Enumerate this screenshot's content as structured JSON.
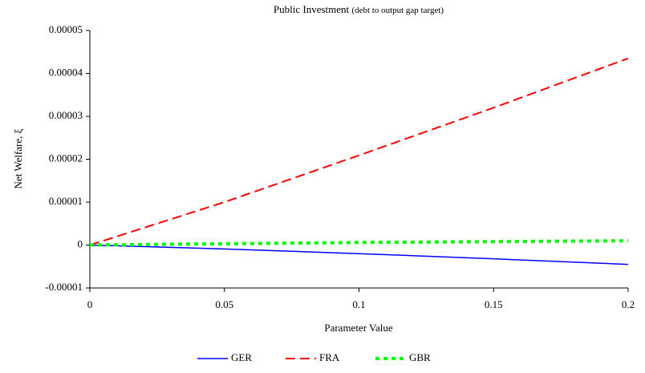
{
  "chart_data": {
    "type": "line",
    "title": "Public Investment",
    "subtitle": "(debt to output gap target)",
    "x_label": "Parameter Value",
    "y_label": "Net Welfare, ξ",
    "x": [
      0,
      0.05,
      0.1,
      0.15,
      0.2
    ],
    "series": [
      {
        "name": "GER",
        "color": "#0000ff",
        "dash": "solid",
        "values": [
          0,
          -9e-07,
          -2e-06,
          -3.2e-06,
          -4.5e-06
        ]
      },
      {
        "name": "FRA",
        "color": "#ff0000",
        "dash": "dashed",
        "values": [
          0,
          1e-05,
          2.09e-05,
          3.2e-05,
          4.35e-05
        ]
      },
      {
        "name": "GBR",
        "color": "#00ff00",
        "dash": "dotted",
        "values": [
          0,
          3e-07,
          6e-07,
          8e-07,
          1e-06
        ]
      }
    ],
    "xlim": [
      0,
      0.2
    ],
    "xticks": [
      0,
      0.05,
      0.1,
      0.15,
      0.2
    ],
    "ylim": [
      -1e-05,
      5e-05
    ],
    "yticks": [
      -1e-05,
      0,
      1e-05,
      2e-05,
      3e-05,
      4e-05,
      5e-05
    ],
    "grid": false,
    "legend": "bottom"
  }
}
